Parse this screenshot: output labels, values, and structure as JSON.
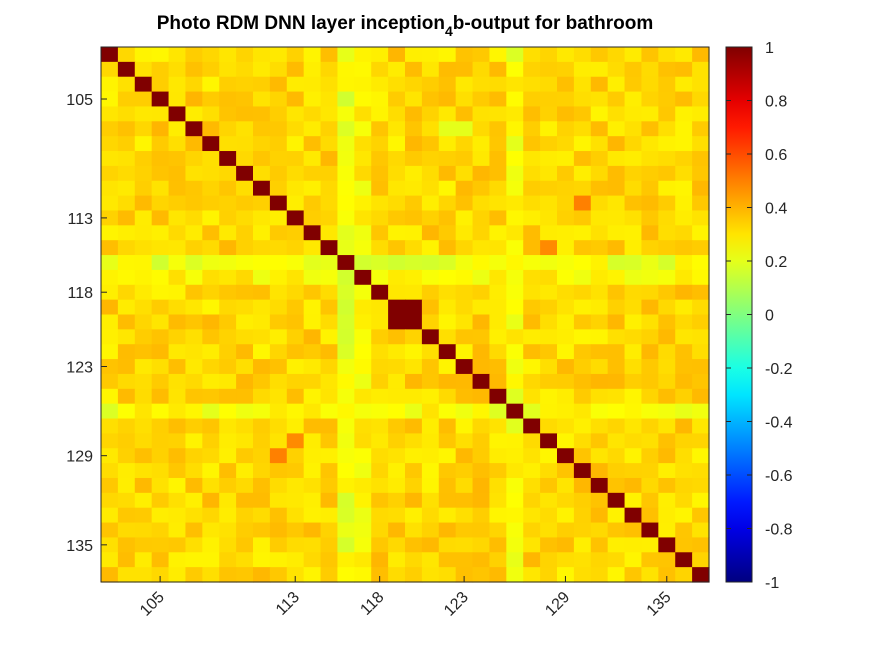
{
  "chart_data": {
    "type": "heatmap",
    "title": {
      "prefix": "Photo RDM DNN layer inception",
      "subscript": "4",
      "suffix": "b-output for bathroom"
    },
    "xlabel": "",
    "ylabel": "",
    "n": 36,
    "first_index": 102,
    "x_tick_labels": [
      {
        "index": 105,
        "label": "105"
      },
      {
        "index": 113,
        "label": "113"
      },
      {
        "index": 118,
        "label": "118"
      },
      {
        "index": 123,
        "label": "123"
      },
      {
        "index": 129,
        "label": "129"
      },
      {
        "index": 135,
        "label": "135"
      }
    ],
    "y_tick_labels": [
      {
        "index": 105,
        "label": "105"
      },
      {
        "index": 113,
        "label": "113"
      },
      {
        "index": 118,
        "label": "118"
      },
      {
        "index": 123,
        "label": "123"
      },
      {
        "index": 129,
        "label": "129"
      },
      {
        "index": 135,
        "label": "135"
      }
    ],
    "clim": [
      -1,
      1
    ],
    "colormap": "jet-like (dark blue → cyan → green → yellow → orange → dark red)",
    "colorbar": {
      "placement": "right",
      "ticks": [
        1,
        0.8,
        0.6,
        0.4,
        0.2,
        0,
        -0.2,
        -0.4,
        -0.6,
        -0.8,
        -1
      ],
      "tick_labels": [
        "1",
        "0.8",
        "0.6",
        "0.4",
        "0.2",
        "0",
        "-0.2",
        "-0.4",
        "-0.6",
        "-0.8",
        "-1"
      ]
    },
    "diagonal_value": 1,
    "typical_offdiagonal_value": 0.33,
    "low_similarity_items": [
      {
        "index": 116,
        "value": 0.22
      },
      {
        "index": 126,
        "value": 0.24
      },
      {
        "index": 117,
        "value": 0.26
      }
    ],
    "identical_pairs": [
      {
        "a": 119,
        "b": 120,
        "value": 1
      }
    ],
    "notable_cells": [
      {
        "row": 112,
        "col": 130,
        "value": 0.5
      },
      {
        "row": 115,
        "col": 128,
        "value": 0.48
      },
      {
        "row": 129,
        "col": 112,
        "value": 0.5
      },
      {
        "row": 128,
        "col": 113,
        "value": 0.48
      },
      {
        "row": 107,
        "col": 122,
        "value": 0.2
      },
      {
        "row": 107,
        "col": 123,
        "value": 0.2
      }
    ]
  }
}
